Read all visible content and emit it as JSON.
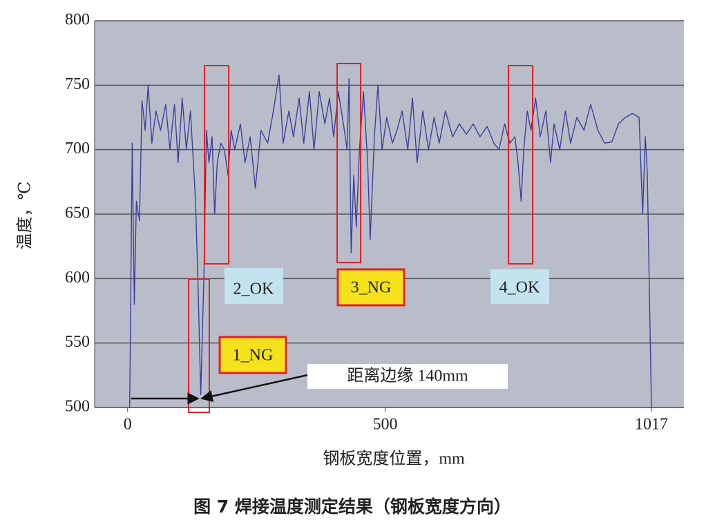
{
  "chart_data": {
    "type": "line",
    "caption": "图 7 焊接温度测定结果（钢板宽度方向）",
    "xlabel": "钢板宽度位置，mm",
    "ylabel": "温度，℃",
    "xlim": [
      -64,
      1080
    ],
    "xticks": [
      0,
      500,
      1017
    ],
    "ylim": [
      500,
      800
    ],
    "yticks": [
      500,
      550,
      600,
      650,
      700,
      750,
      800
    ],
    "grid": true,
    "annotations": [
      "2_OK",
      "3_NG",
      "4_OK",
      "1_NG",
      "距离边缘 140mm"
    ],
    "series": [
      {
        "color": "#3b3f9c",
        "x": [
          4,
          9,
          13,
          17,
          23,
          28,
          34,
          40,
          47,
          55,
          64,
          74,
          82,
          91,
          98,
          106,
          114,
          122,
          132,
          137,
          142,
          148,
          153,
          158,
          164,
          169,
          174,
          181,
          188,
          195,
          201,
          208,
          219,
          228,
          238,
          248,
          259,
          272,
          283,
          294,
          302,
          313,
          322,
          333,
          342,
          353,
          362,
          372,
          383,
          392,
          400,
          409,
          419,
          426,
          430,
          434,
          439,
          444,
          450,
          458,
          466,
          471,
          479,
          486,
          494,
          503,
          514,
          523,
          533,
          544,
          553,
          562,
          573,
          584,
          595,
          605,
          617,
          631,
          644,
          658,
          671,
          684,
          698,
          711,
          721,
          732,
          742,
          752,
          758,
          764,
          769,
          776,
          783,
          792,
          801,
          812,
          821,
          828,
          839,
          850,
          860,
          872,
          886,
          899,
          913,
          926,
          940,
          953,
          966,
          980,
          993,
          1000,
          1005,
          1009,
          1013,
          1017
        ],
        "values": [
          500,
          705,
          580,
          660,
          645,
          738,
          715,
          750,
          705,
          730,
          715,
          735,
          700,
          735,
          690,
          740,
          700,
          730,
          660,
          590,
          510,
          600,
          715,
          690,
          710,
          650,
          690,
          705,
          700,
          680,
          715,
          700,
          720,
          690,
          710,
          670,
          715,
          705,
          730,
          758,
          705,
          730,
          710,
          740,
          705,
          745,
          700,
          745,
          720,
          740,
          710,
          745,
          720,
          700,
          755,
          620,
          680,
          640,
          700,
          745,
          690,
          630,
          710,
          750,
          700,
          725,
          705,
          715,
          730,
          700,
          740,
          690,
          730,
          700,
          725,
          705,
          730,
          710,
          720,
          712,
          720,
          710,
          718,
          705,
          700,
          720,
          705,
          710,
          690,
          660,
          700,
          730,
          715,
          740,
          710,
          730,
          690,
          720,
          700,
          730,
          705,
          725,
          715,
          735,
          715,
          705,
          706,
          720,
          725,
          728,
          725,
          650,
          710,
          680,
          590,
          500
        ]
      }
    ]
  }
}
